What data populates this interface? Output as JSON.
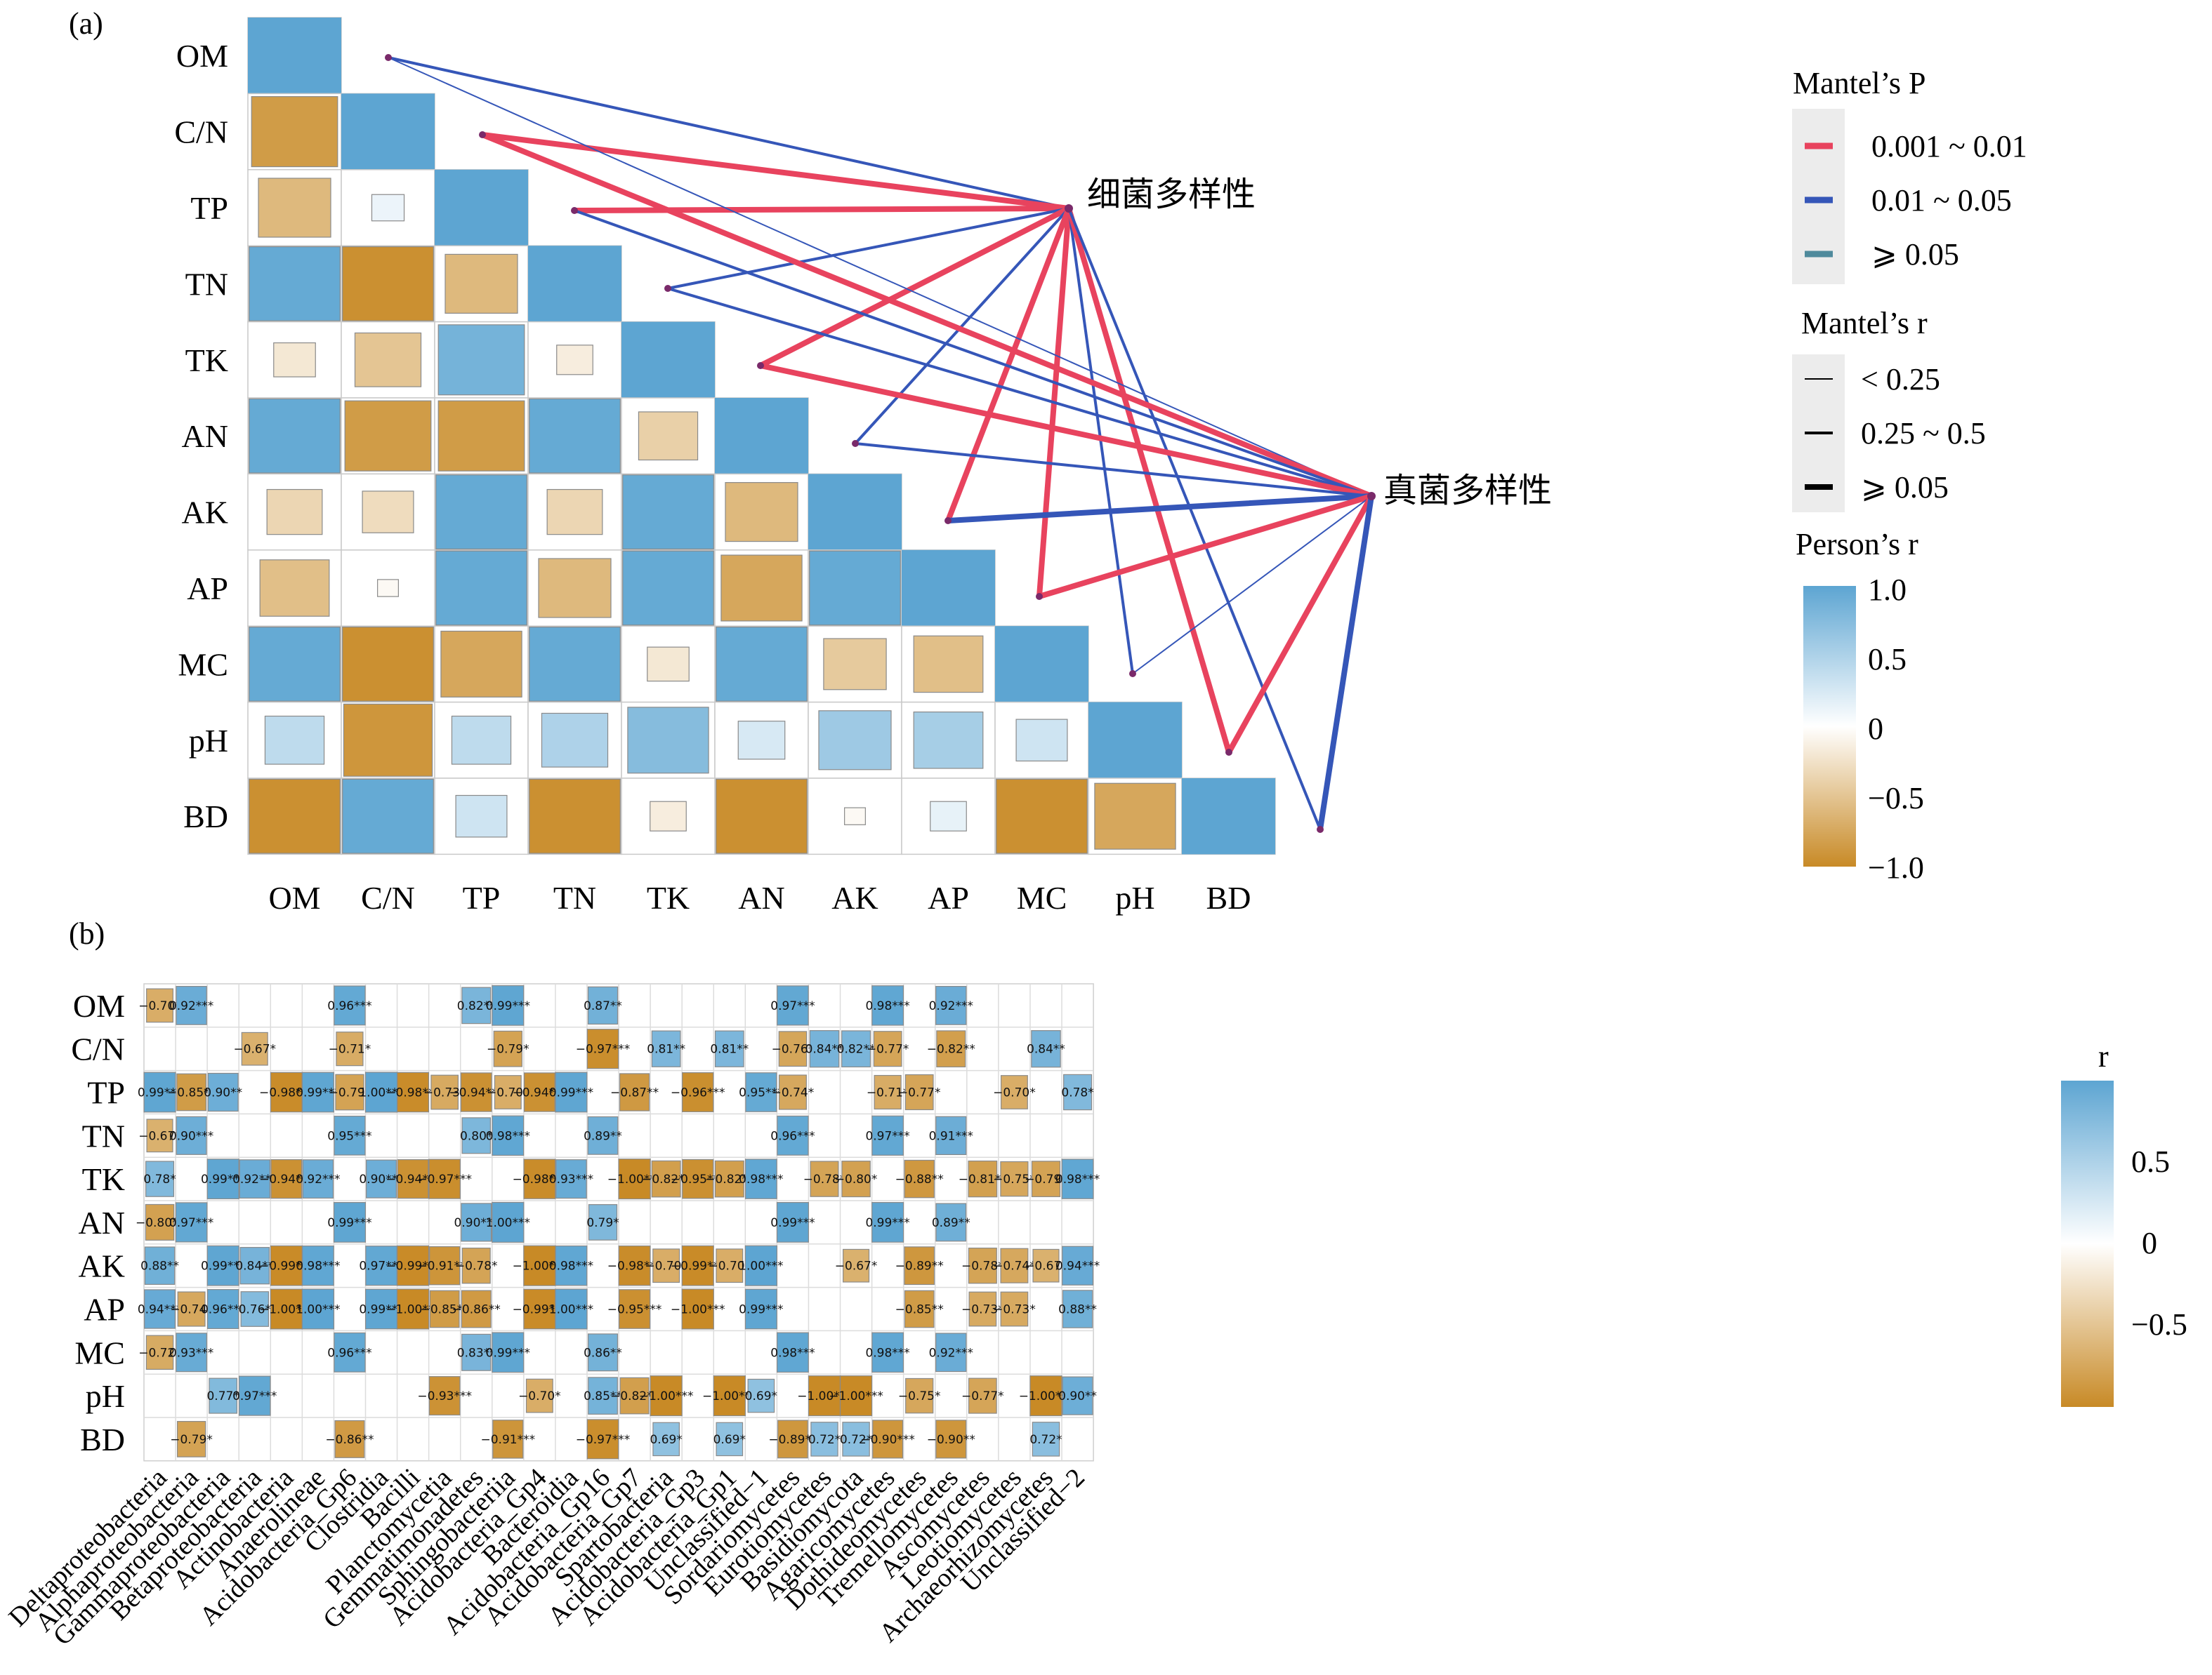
{
  "panel_a": {
    "label": "(a)",
    "legend": {
      "p_title": "Mantel’s P",
      "p_items": [
        {
          "label": "0.001 ~ 0.01",
          "color": "#e8435e"
        },
        {
          "label": "0.01 ~ 0.05",
          "color": "#3556b8"
        },
        {
          "label": "⩾ 0.05",
          "color": "#4f8a9c"
        }
      ],
      "r_title": "Mantel’s r",
      "r_items": [
        {
          "label": "< 0.25"
        },
        {
          "label": "0.25 ~ 0.5"
        },
        {
          "label": "⩾ 0.05"
        }
      ],
      "color_title": "Person’s r",
      "color_ticks": [
        "1.0",
        "0.5",
        "0",
        "−0.5",
        "−1.0"
      ]
    }
  },
  "panel_b": {
    "label": "(b)",
    "legend_title": "r",
    "legend_ticks": [
      "0.5",
      "0",
      "−0.5"
    ]
  },
  "chart_data": [
    {
      "type": "heatmap",
      "description_of_shape": "lower-triangular correlation matrix with Mantel test links",
      "variables": [
        "OM",
        "C/N",
        "TP",
        "TN",
        "TK",
        "AN",
        "AK",
        "AP",
        "MC",
        "pH",
        "BD"
      ],
      "matrix": [
        [
          1
        ],
        [
          -0.85,
          1
        ],
        [
          -0.6,
          0.12,
          1
        ],
        [
          0.95,
          -0.95,
          -0.6,
          1
        ],
        [
          -0.2,
          -0.5,
          0.85,
          -0.15,
          1
        ],
        [
          0.95,
          -0.85,
          -0.85,
          0.95,
          -0.4,
          1
        ],
        [
          -0.35,
          -0.3,
          0.95,
          -0.35,
          0.95,
          -0.6,
          1
        ],
        [
          -0.55,
          -0.05,
          0.95,
          -0.6,
          0.95,
          -0.75,
          0.95,
          1
        ],
        [
          0.95,
          -0.95,
          -0.75,
          0.95,
          -0.2,
          0.95,
          -0.45,
          -0.55,
          1
        ],
        [
          0.4,
          -0.9,
          0.4,
          0.5,
          0.75,
          0.25,
          0.6,
          0.55,
          0.3,
          1
        ],
        [
          -0.95,
          0.95,
          0.3,
          -0.95,
          -0.15,
          -0.95,
          -0.05,
          0.15,
          -0.95,
          -0.75,
          1
        ]
      ],
      "mantel_nodes": [
        "细菌多样性",
        "真菌多样性"
      ],
      "mantel_links": [
        {
          "from": "细菌多样性",
          "to": "OM",
          "p": "0.01 ~ 0.05",
          "r": "0.25 ~ 0.5"
        },
        {
          "from": "细菌多样性",
          "to": "C/N",
          "p": "0.001 ~ 0.01",
          "r": "⩾ 0.05"
        },
        {
          "from": "细菌多样性",
          "to": "TP",
          "p": "0.001 ~ 0.01",
          "r": "⩾ 0.05"
        },
        {
          "from": "细菌多样性",
          "to": "TN",
          "p": "0.01 ~ 0.05",
          "r": "0.25 ~ 0.5"
        },
        {
          "from": "细菌多样性",
          "to": "TK",
          "p": "0.001 ~ 0.01",
          "r": "⩾ 0.05"
        },
        {
          "from": "细菌多样性",
          "to": "AN",
          "p": "0.01 ~ 0.05",
          "r": "0.25 ~ 0.5"
        },
        {
          "from": "细菌多样性",
          "to": "AK",
          "p": "0.001 ~ 0.01",
          "r": "⩾ 0.05"
        },
        {
          "from": "细菌多样性",
          "to": "AP",
          "p": "0.001 ~ 0.01",
          "r": "⩾ 0.05"
        },
        {
          "from": "细菌多样性",
          "to": "MC",
          "p": "0.01 ~ 0.05",
          "r": "0.25 ~ 0.5"
        },
        {
          "from": "细菌多样性",
          "to": "pH",
          "p": "0.001 ~ 0.01",
          "r": "⩾ 0.05"
        },
        {
          "from": "细菌多样性",
          "to": "BD",
          "p": "0.01 ~ 0.05",
          "r": "0.25 ~ 0.5"
        },
        {
          "from": "真菌多样性",
          "to": "OM",
          "p": "0.01 ~ 0.05",
          "r": "< 0.25"
        },
        {
          "from": "真菌多样性",
          "to": "C/N",
          "p": "0.001 ~ 0.01",
          "r": "⩾ 0.05"
        },
        {
          "from": "真菌多样性",
          "to": "TP",
          "p": "0.01 ~ 0.05",
          "r": "0.25 ~ 0.5"
        },
        {
          "from": "真菌多样性",
          "to": "TN",
          "p": "0.01 ~ 0.05",
          "r": "0.25 ~ 0.5"
        },
        {
          "from": "真菌多样性",
          "to": "TK",
          "p": "0.001 ~ 0.01",
          "r": "⩾ 0.05"
        },
        {
          "from": "真菌多样性",
          "to": "AN",
          "p": "0.01 ~ 0.05",
          "r": "0.25 ~ 0.5"
        },
        {
          "from": "真菌多样性",
          "to": "AK",
          "p": "0.01 ~ 0.05",
          "r": "⩾ 0.05"
        },
        {
          "from": "真菌多样性",
          "to": "AP",
          "p": "0.001 ~ 0.01",
          "r": "⩾ 0.05"
        },
        {
          "from": "真菌多样性",
          "to": "MC",
          "p": "0.01 ~ 0.05",
          "r": "< 0.25"
        },
        {
          "from": "真菌多样性",
          "to": "pH",
          "p": "0.001 ~ 0.01",
          "r": "⩾ 0.05"
        },
        {
          "from": "真菌多样性",
          "to": "BD",
          "p": "0.01 ~ 0.05",
          "r": "⩾ 0.05"
        }
      ],
      "colorscale": [
        "#c88a26",
        "#ffffff",
        "#5da5d2"
      ],
      "colorbar_range": [
        -1.0,
        1.0
      ]
    },
    {
      "type": "heatmap",
      "rows": [
        "OM",
        "C/N",
        "TP",
        "TN",
        "TK",
        "AN",
        "AK",
        "AP",
        "MC",
        "pH",
        "BD"
      ],
      "columns": [
        "Deltaproteobacteria",
        "Alphaproteobacteria",
        "Gammaproteobacteria",
        "Betaproteobacteria",
        "Actinobacteria",
        "Anaerolineae",
        "Acidobacteria_Gp6",
        "Clostridia",
        "Bacilli",
        "Planctomycetia",
        "Gemmatimonadetes",
        "Sphingobacteriia",
        "Acidobacteria_Gp4",
        "Bacteroidia",
        "Acidobacteria_Gp16",
        "Acidobacteria_Gp7",
        "Spartobacteria",
        "Acidobacteria_Gp3",
        "Acidobacteria_Gp1",
        "Unclassified−1",
        "Sordariomycetes",
        "Eurotiomycetes",
        "Basidiomycota",
        "Agaricomycetes",
        "Dothideomycetes",
        "Tremellomycetes",
        "Ascomycetes",
        "Leotiomycetes",
        "Archaeorhizomycetes",
        "Unclassified−2"
      ],
      "cells": [
        [
          [
            -0.7,
            "−0.70*"
          ],
          [
            0.92,
            "0.92***"
          ],
          null,
          null,
          null,
          null,
          [
            0.96,
            "0.96***"
          ],
          null,
          null,
          null,
          [
            0.82,
            "0.82**"
          ],
          [
            0.99,
            "0.99***"
          ],
          null,
          null,
          [
            0.87,
            "0.87**"
          ],
          null,
          null,
          null,
          null,
          null,
          [
            0.97,
            "0.97***"
          ],
          null,
          null,
          [
            0.98,
            "0.98***"
          ],
          null,
          [
            0.92,
            "0.92***"
          ],
          null,
          null,
          null,
          null
        ],
        [
          null,
          null,
          null,
          [
            -0.67,
            "−0.67*"
          ],
          null,
          null,
          [
            -0.71,
            "−0.71*"
          ],
          null,
          null,
          null,
          null,
          [
            -0.79,
            "−0.79*"
          ],
          null,
          null,
          [
            -0.97,
            "−0.97***"
          ],
          null,
          [
            0.81,
            "0.81**"
          ],
          null,
          [
            0.81,
            "0.81**"
          ],
          null,
          [
            -0.76,
            "−0.76*"
          ],
          [
            0.84,
            "0.84**"
          ],
          [
            0.82,
            "0.82**"
          ],
          [
            -0.77,
            "−0.77*"
          ],
          null,
          [
            -0.82,
            "−0.82**"
          ],
          null,
          null,
          [
            0.84,
            "0.84**"
          ],
          null
        ],
        [
          [
            0.99,
            "0.99***"
          ],
          [
            -0.85,
            "−0.85**"
          ],
          [
            0.9,
            "0.90**"
          ],
          null,
          [
            -0.98,
            "−0.98***"
          ],
          [
            0.99,
            "0.99***"
          ],
          [
            -0.79,
            "−0.79*"
          ],
          [
            1.0,
            "1.00***"
          ],
          [
            -0.98,
            "−0.98***"
          ],
          [
            -0.73,
            "−0.73*"
          ],
          [
            -0.94,
            "−0.94***"
          ],
          [
            -0.7,
            "−0.70*"
          ],
          [
            -0.94,
            "−0.94***"
          ],
          [
            0.99,
            "0.99***"
          ],
          null,
          [
            -0.87,
            "−0.87**"
          ],
          null,
          [
            -0.96,
            "−0.96***"
          ],
          null,
          [
            0.95,
            "0.95***"
          ],
          [
            -0.74,
            "−0.74*"
          ],
          null,
          null,
          [
            -0.71,
            "−0.71*"
          ],
          [
            -0.77,
            "−0.77*"
          ],
          null,
          null,
          [
            -0.7,
            "−0.70*"
          ],
          null,
          [
            0.78,
            "0.78*"
          ]
        ],
        [
          [
            -0.67,
            "−0.67*"
          ],
          [
            0.9,
            "0.90***"
          ],
          null,
          null,
          null,
          null,
          [
            0.95,
            "0.95***"
          ],
          null,
          null,
          null,
          [
            0.8,
            "0.80*"
          ],
          [
            0.98,
            "0.98***"
          ],
          null,
          null,
          [
            0.89,
            "0.89**"
          ],
          null,
          null,
          null,
          null,
          null,
          [
            0.96,
            "0.96***"
          ],
          null,
          null,
          [
            0.97,
            "0.97***"
          ],
          null,
          [
            0.91,
            "0.91***"
          ],
          null,
          null,
          null,
          null
        ],
        [
          [
            0.78,
            "0.78*"
          ],
          null,
          [
            0.99,
            "0.99***"
          ],
          [
            0.92,
            "0.92***"
          ],
          [
            -0.94,
            "−0.94***"
          ],
          [
            0.92,
            "0.92***"
          ],
          null,
          [
            0.9,
            "0.90***"
          ],
          [
            -0.94,
            "−0.94***"
          ],
          [
            -0.97,
            "−0.97***"
          ],
          null,
          null,
          [
            -0.98,
            "−0.98***"
          ],
          [
            0.93,
            "0.93***"
          ],
          null,
          [
            -1.0,
            "−1.00***"
          ],
          [
            -0.82,
            "−0.82**"
          ],
          [
            -0.95,
            "−0.95***"
          ],
          [
            -0.82,
            "−0.82**"
          ],
          [
            0.98,
            "0.98***"
          ],
          null,
          [
            -0.78,
            "−0.78*"
          ],
          [
            -0.8,
            "−0.80*"
          ],
          null,
          [
            -0.88,
            "−0.88**"
          ],
          null,
          [
            -0.81,
            "−0.81**"
          ],
          [
            -0.75,
            "−0.75*"
          ],
          [
            -0.79,
            "−0.79*"
          ],
          [
            0.98,
            "0.98***"
          ]
        ],
        [
          [
            -0.8,
            "−0.80**"
          ],
          [
            0.97,
            "0.97***"
          ],
          null,
          null,
          null,
          null,
          [
            0.99,
            "0.99***"
          ],
          null,
          null,
          null,
          [
            0.9,
            "0.90***"
          ],
          [
            1.0,
            "1.00***"
          ],
          null,
          null,
          [
            0.79,
            "0.79*"
          ],
          null,
          null,
          null,
          null,
          null,
          [
            0.99,
            "0.99***"
          ],
          null,
          null,
          [
            0.99,
            "0.99***"
          ],
          null,
          [
            0.89,
            "0.89**"
          ],
          null,
          null,
          null,
          null
        ],
        [
          [
            0.88,
            "0.88**"
          ],
          null,
          [
            0.99,
            "0.99***"
          ],
          [
            0.84,
            "0.84**"
          ],
          [
            -0.99,
            "−0.99***"
          ],
          [
            0.98,
            "0.98***"
          ],
          null,
          [
            0.97,
            "0.97***"
          ],
          [
            -0.99,
            "−0.99***"
          ],
          [
            -0.91,
            "−0.91***"
          ],
          [
            -0.78,
            "−0.78*"
          ],
          null,
          [
            -1.0,
            "−1.00***"
          ],
          [
            0.98,
            "0.98***"
          ],
          null,
          [
            -0.98,
            "−0.98***"
          ],
          [
            -0.7,
            "−0.70*"
          ],
          [
            -0.99,
            "−0.99***"
          ],
          [
            -0.7,
            "−0.70*"
          ],
          [
            1.0,
            "1.00***"
          ],
          null,
          null,
          [
            -0.67,
            "−0.67*"
          ],
          null,
          [
            -0.89,
            "−0.89**"
          ],
          null,
          [
            -0.78,
            "−0.78*"
          ],
          [
            -0.74,
            "−0.74*"
          ],
          [
            -0.67,
            "−0.67*"
          ],
          [
            0.94,
            "0.94***"
          ]
        ],
        [
          [
            0.94,
            "0.94***"
          ],
          [
            -0.74,
            "−0.74*"
          ],
          [
            0.96,
            "0.96***"
          ],
          [
            0.76,
            "0.76*"
          ],
          [
            -1.0,
            "−1.00***"
          ],
          [
            1.0,
            "1.00***"
          ],
          null,
          [
            0.99,
            "0.99***"
          ],
          [
            -1.0,
            "−1.00***"
          ],
          [
            -0.85,
            "−0.85**"
          ],
          [
            -0.86,
            "−0.86**"
          ],
          null,
          [
            -0.99,
            "−0.99***"
          ],
          [
            1.0,
            "1.00***"
          ],
          null,
          [
            -0.95,
            "−0.95***"
          ],
          null,
          [
            -1.0,
            "−1.00***"
          ],
          null,
          [
            0.99,
            "0.99***"
          ],
          null,
          null,
          null,
          null,
          [
            -0.85,
            "−0.85**"
          ],
          null,
          [
            -0.73,
            "−0.73*"
          ],
          [
            -0.73,
            "−0.73*"
          ],
          null,
          [
            0.88,
            "0.88**"
          ]
        ],
        [
          [
            -0.72,
            "−0.72*"
          ],
          [
            0.93,
            "0.93***"
          ],
          null,
          null,
          null,
          null,
          [
            0.96,
            "0.96***"
          ],
          null,
          null,
          null,
          [
            0.83,
            "0.83**"
          ],
          [
            0.99,
            "0.99***"
          ],
          null,
          null,
          [
            0.86,
            "0.86**"
          ],
          null,
          null,
          null,
          null,
          null,
          [
            0.98,
            "0.98***"
          ],
          null,
          null,
          [
            0.98,
            "0.98***"
          ],
          null,
          [
            0.92,
            "0.92***"
          ],
          null,
          null,
          null,
          null
        ],
        [
          null,
          null,
          [
            0.77,
            "0.77*"
          ],
          [
            0.97,
            "0.97***"
          ],
          null,
          null,
          null,
          null,
          null,
          [
            -0.93,
            "−0.93***"
          ],
          null,
          null,
          [
            -0.7,
            "−0.70*"
          ],
          null,
          [
            0.85,
            "0.85**"
          ],
          [
            -0.82,
            "−0.82**"
          ],
          [
            -1.0,
            "−1.00***"
          ],
          null,
          [
            -1.0,
            "−1.00***"
          ],
          [
            0.69,
            "0.69*"
          ],
          null,
          [
            -1.0,
            "−1.00***"
          ],
          [
            -1.0,
            "−1.00***"
          ],
          null,
          [
            -0.75,
            "−0.75*"
          ],
          null,
          [
            -0.77,
            "−0.77*"
          ],
          null,
          [
            -1.0,
            "−1.00***"
          ],
          [
            0.9,
            "0.90**"
          ]
        ],
        [
          null,
          [
            -0.79,
            "−0.79*"
          ],
          null,
          null,
          null,
          null,
          [
            -0.86,
            "−0.86**"
          ],
          null,
          null,
          null,
          null,
          [
            -0.91,
            "−0.91***"
          ],
          null,
          null,
          [
            -0.97,
            "−0.97***"
          ],
          null,
          [
            0.69,
            "0.69*"
          ],
          null,
          [
            0.69,
            "0.69*"
          ],
          null,
          [
            -0.89,
            "−0.89**"
          ],
          [
            0.72,
            "0.72*"
          ],
          [
            0.72,
            "0.72*"
          ],
          [
            -0.9,
            "−0.90***"
          ],
          null,
          [
            -0.9,
            "−0.90**"
          ],
          null,
          null,
          [
            0.72,
            "0.72*"
          ],
          null
        ]
      ],
      "colorscale": [
        "#c88a26",
        "#ffffff",
        "#5da5d2"
      ]
    }
  ]
}
